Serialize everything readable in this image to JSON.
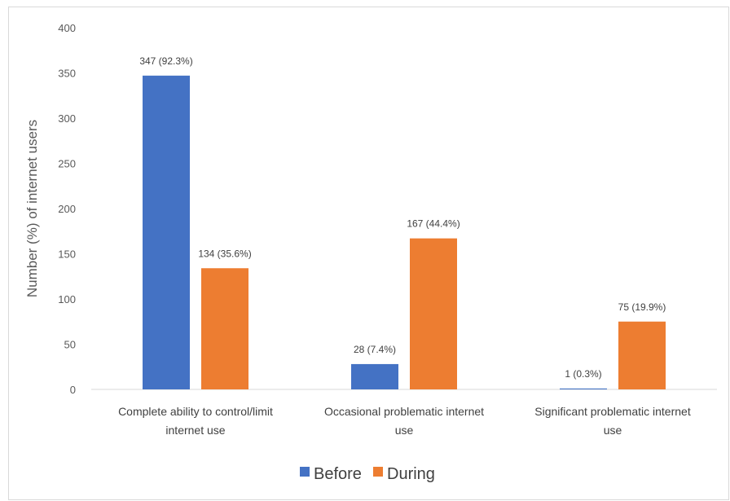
{
  "chart_data": {
    "type": "bar",
    "categories": [
      [
        "Complete ability to control/limit",
        "internet use"
      ],
      [
        "Occasional problematic internet",
        "use"
      ],
      [
        "Significant problematic internet",
        "use"
      ]
    ],
    "series": [
      {
        "name": "Before",
        "color": "#4472C4",
        "values": [
          347,
          28,
          1
        ],
        "labels": [
          "347 (92.3%)",
          "28 (7.4%)",
          "1 (0.3%)"
        ]
      },
      {
        "name": "During",
        "color": "#ED7D31",
        "values": [
          134,
          167,
          75
        ],
        "labels": [
          "134 (35.6%)",
          "167 (44.4%)",
          "75 (19.9%)"
        ]
      }
    ],
    "ylabel": "Number (%) of internet users",
    "ylim": [
      0,
      400
    ],
    "yticks": [
      0,
      50,
      100,
      150,
      200,
      250,
      300,
      350,
      400
    ],
    "grid": false,
    "legend_position": "bottom"
  }
}
